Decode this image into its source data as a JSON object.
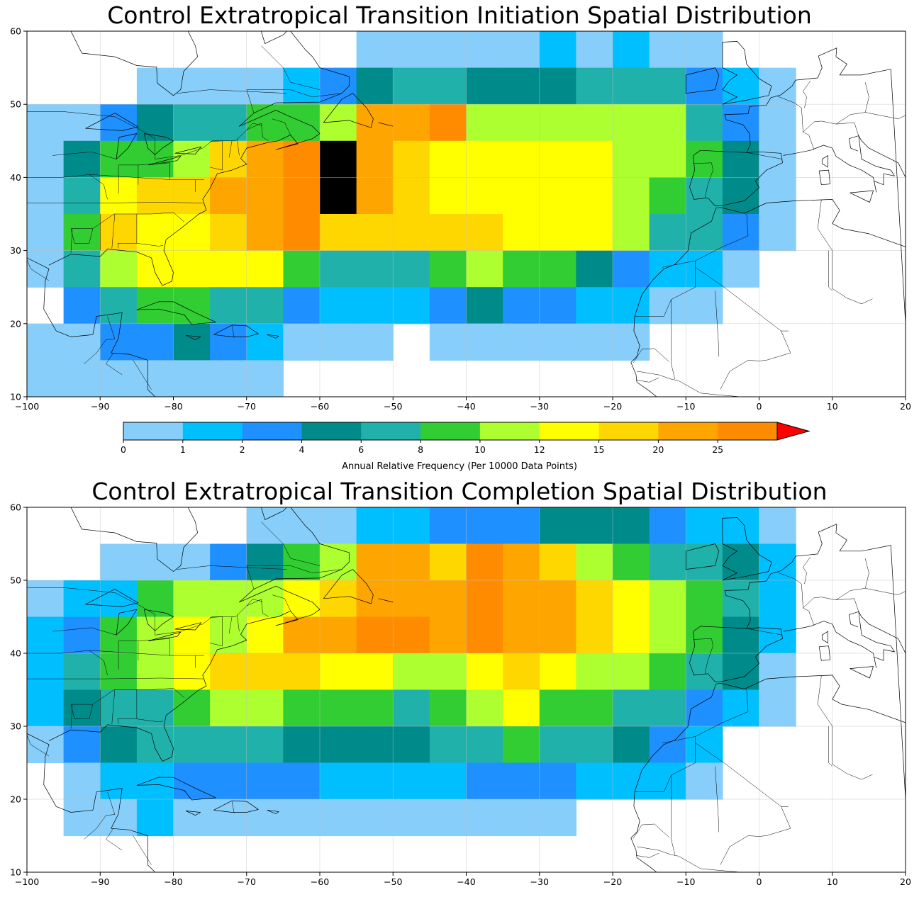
{
  "chart_data": [
    {
      "type": "heatmap",
      "title": "Control Extratropical Transition Initiation Spatial Distribution",
      "xlabel": "",
      "ylabel": "",
      "xlim": [
        -100,
        20
      ],
      "ylim": [
        10,
        60
      ],
      "x_ticks": [
        "−100",
        "−90",
        "−80",
        "−70",
        "−60",
        "−50",
        "−40",
        "−30",
        "−20",
        "−10",
        "0",
        "10",
        "20"
      ],
      "y_ticks": [
        "10",
        "20",
        "30",
        "40",
        "50",
        "60"
      ],
      "cell_size_deg": 5,
      "x_start": -100,
      "y_start_top": 60,
      "grid_bin_index_note": "rows from 60N down to 10N; values are colorbar bin indices (0-based), -1 = empty",
      "rows": [
        [
          -1,
          -1,
          -1,
          -1,
          -1,
          -1,
          -1,
          -1,
          -1,
          0,
          0,
          0,
          0,
          0,
          1,
          0,
          1,
          0,
          0,
          -1,
          -1,
          -1,
          -1,
          -1
        ],
        [
          -1,
          -1,
          -1,
          0,
          0,
          0,
          0,
          1,
          2,
          3,
          4,
          4,
          3,
          3,
          3,
          4,
          4,
          4,
          2,
          1,
          0,
          -1,
          -1,
          -1
        ],
        [
          0,
          0,
          2,
          3,
          4,
          4,
          5,
          5,
          6,
          9,
          9,
          10,
          6,
          6,
          6,
          6,
          6,
          6,
          4,
          2,
          0,
          -1,
          -1,
          -1
        ],
        [
          0,
          3,
          5,
          5,
          6,
          8,
          9,
          10,
          11,
          9,
          8,
          7,
          7,
          7,
          7,
          7,
          6,
          6,
          5,
          3,
          0,
          -1,
          -1,
          -1
        ],
        [
          0,
          4,
          7,
          8,
          8,
          9,
          9,
          10,
          11,
          9,
          8,
          7,
          7,
          7,
          7,
          7,
          6,
          5,
          4,
          3,
          0,
          -1,
          -1,
          -1
        ],
        [
          0,
          5,
          8,
          7,
          7,
          8,
          9,
          10,
          8,
          8,
          8,
          8,
          8,
          7,
          7,
          7,
          6,
          4,
          4,
          2,
          0,
          -1,
          -1,
          -1
        ],
        [
          0,
          4,
          6,
          7,
          7,
          7,
          7,
          5,
          4,
          4,
          4,
          5,
          6,
          5,
          5,
          3,
          2,
          1,
          1,
          0,
          -1,
          -1,
          -1,
          -1
        ],
        [
          -1,
          2,
          4,
          5,
          5,
          4,
          4,
          2,
          1,
          1,
          1,
          2,
          3,
          2,
          2,
          1,
          1,
          0,
          0,
          -1,
          -1,
          -1,
          -1,
          -1
        ],
        [
          0,
          0,
          2,
          2,
          3,
          2,
          1,
          0,
          0,
          0,
          -1,
          0,
          0,
          0,
          0,
          0,
          0,
          -1,
          -1,
          -1,
          -1,
          -1,
          -1,
          -1
        ],
        [
          0,
          0,
          0,
          0,
          0,
          0,
          0,
          -1,
          -1,
          -1,
          -1,
          -1,
          -1,
          -1,
          -1,
          -1,
          -1,
          -1,
          -1,
          -1,
          -1,
          -1,
          -1,
          -1
        ]
      ]
    },
    {
      "type": "heatmap",
      "title": "Control Extratropical Transition Completion Spatial Distribution",
      "xlabel": "",
      "ylabel": "",
      "xlim": [
        -100,
        20
      ],
      "ylim": [
        10,
        60
      ],
      "x_ticks": [
        "−100",
        "−90",
        "−80",
        "−70",
        "−60",
        "−50",
        "−40",
        "−30",
        "−20",
        "−10",
        "0",
        "10",
        "20"
      ],
      "y_ticks": [
        "10",
        "20",
        "30",
        "40",
        "50",
        "60"
      ],
      "cell_size_deg": 5,
      "x_start": -100,
      "y_start_top": 60,
      "rows": [
        [
          -1,
          -1,
          -1,
          -1,
          -1,
          -1,
          0,
          0,
          0,
          1,
          1,
          2,
          2,
          2,
          3,
          3,
          3,
          2,
          1,
          1,
          0,
          -1,
          -1,
          -1
        ],
        [
          -1,
          -1,
          0,
          0,
          0,
          2,
          3,
          5,
          6,
          9,
          9,
          8,
          10,
          9,
          8,
          6,
          5,
          4,
          4,
          3,
          1,
          -1,
          -1,
          -1
        ],
        [
          0,
          1,
          1,
          5,
          6,
          6,
          6,
          7,
          8,
          9,
          9,
          9,
          10,
          9,
          9,
          8,
          7,
          6,
          5,
          4,
          1,
          -1,
          -1,
          -1
        ],
        [
          1,
          2,
          5,
          6,
          7,
          6,
          7,
          9,
          9,
          10,
          10,
          9,
          10,
          9,
          9,
          8,
          7,
          6,
          5,
          3,
          1,
          -1,
          -1,
          -1
        ],
        [
          1,
          4,
          5,
          6,
          7,
          8,
          8,
          8,
          7,
          7,
          6,
          6,
          7,
          8,
          7,
          6,
          6,
          5,
          4,
          3,
          0,
          -1,
          -1,
          -1
        ],
        [
          1,
          3,
          4,
          4,
          5,
          6,
          6,
          5,
          5,
          5,
          4,
          5,
          6,
          7,
          5,
          5,
          4,
          4,
          2,
          1,
          0,
          -1,
          -1,
          -1
        ],
        [
          0,
          2,
          3,
          4,
          4,
          4,
          4,
          3,
          3,
          3,
          3,
          4,
          4,
          5,
          4,
          4,
          3,
          2,
          1,
          -1,
          -1,
          -1,
          -1,
          -1
        ],
        [
          -1,
          0,
          1,
          1,
          2,
          2,
          2,
          2,
          1,
          1,
          1,
          1,
          2,
          2,
          2,
          1,
          1,
          1,
          0,
          -1,
          -1,
          -1,
          -1,
          -1
        ],
        [
          -1,
          0,
          0,
          1,
          0,
          0,
          0,
          0,
          0,
          0,
          0,
          0,
          0,
          0,
          0,
          -1,
          -1,
          -1,
          -1,
          -1,
          -1,
          -1,
          -1,
          -1
        ],
        [
          -1,
          -1,
          -1,
          -1,
          -1,
          -1,
          -1,
          -1,
          -1,
          -1,
          -1,
          -1,
          -1,
          -1,
          -1,
          -1,
          -1,
          -1,
          -1,
          -1,
          -1,
          -1,
          -1,
          -1
        ]
      ]
    }
  ],
  "colorbar": {
    "label": "Annual Relative Frequency (Per 10000 Data Points)",
    "ticks": [
      "0",
      "1",
      "2",
      "4",
      "6",
      "8",
      "10",
      "12",
      "15",
      "20",
      "25"
    ],
    "bounds": [
      0,
      1,
      2,
      3,
      4,
      6,
      8,
      10,
      12,
      15,
      20,
      25
    ],
    "colors": [
      "#87cefa",
      "#00bfff",
      "#1e90ff",
      "#008b8b",
      "#20b2aa",
      "#32cd32",
      "#adff2f",
      "#ffff00",
      "#ffd700",
      "#ffa500",
      "#ff8c00"
    ],
    "extend_color": "#ff0000"
  }
}
